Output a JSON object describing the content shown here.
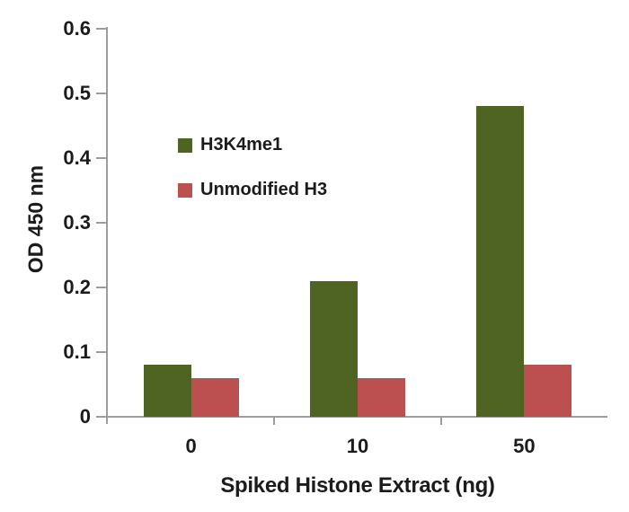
{
  "chart_data": {
    "type": "bar",
    "title": "",
    "xlabel": "Spiked Histone Extract (ng)",
    "ylabel": "OD 450 nm",
    "categories": [
      "0",
      "10",
      "50"
    ],
    "series": [
      {
        "name": "H3K4me1",
        "color": "#4f6423",
        "values": [
          0.08,
          0.21,
          0.48
        ]
      },
      {
        "name": "Unmodified H3",
        "color": "#bc4f4f",
        "values": [
          0.06,
          0.06,
          0.08
        ]
      }
    ],
    "ylim": [
      0,
      0.6
    ],
    "yticks": [
      0,
      0.1,
      0.2,
      0.3,
      0.4,
      0.5,
      0.6
    ],
    "ytick_labels": [
      "0",
      "0.1",
      "0.2",
      "0.3",
      "0.4",
      "0.5",
      "0.6"
    ],
    "grid": false,
    "legend_position": "upper-left-inside",
    "axis_color": "#9d9d9d",
    "text_color": "#1b1b1b",
    "background_color": "#ffffff"
  }
}
